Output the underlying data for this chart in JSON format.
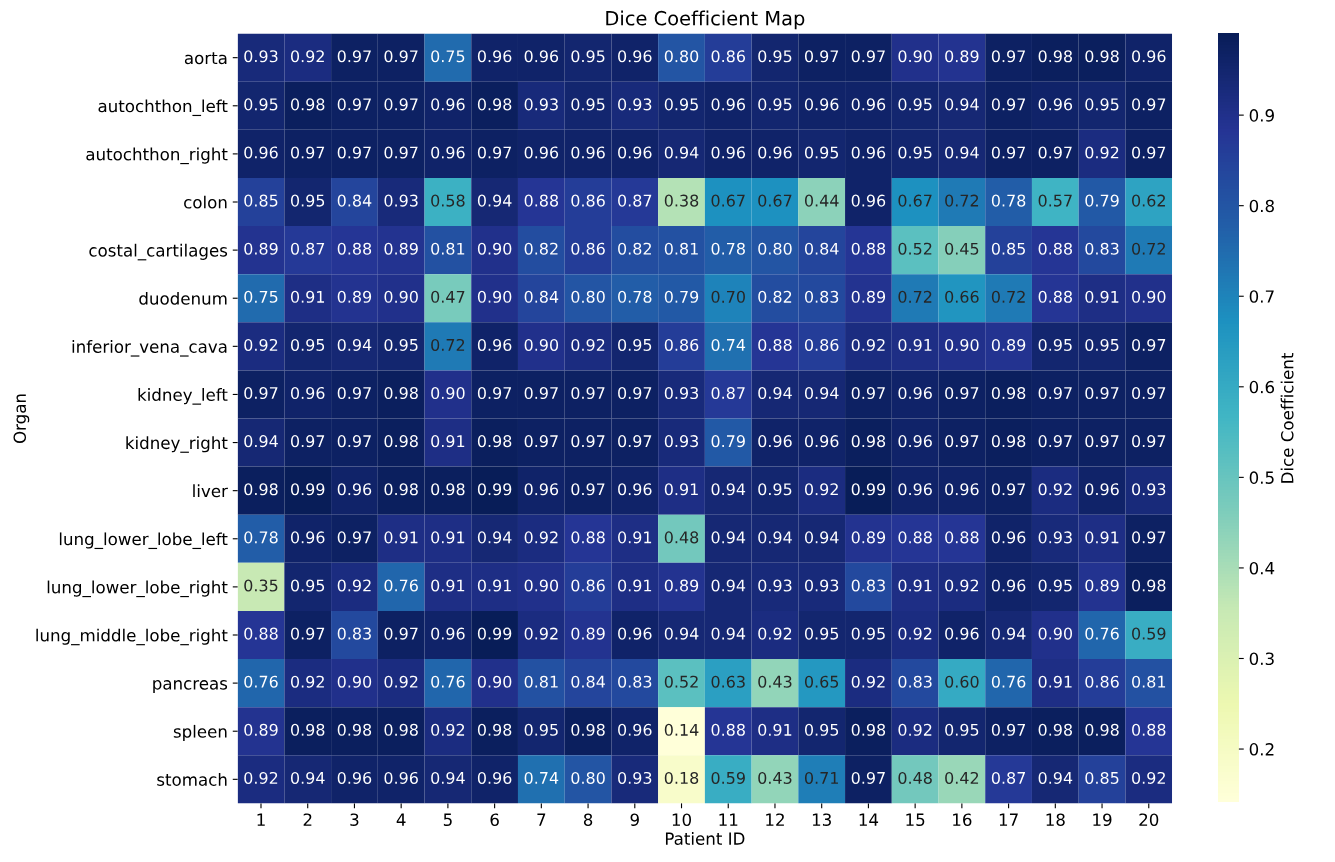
{
  "chart_data": {
    "type": "heatmap",
    "title": "Dice Coefficient Map",
    "xlabel": "Patient ID",
    "ylabel": "Organ",
    "clabel": "Dice Coefficient",
    "categories": [
      "1",
      "2",
      "3",
      "4",
      "5",
      "6",
      "7",
      "8",
      "9",
      "10",
      "11",
      "12",
      "13",
      "14",
      "15",
      "16",
      "17",
      "18",
      "19",
      "20"
    ],
    "y_categories": [
      "aorta",
      "autochthon_left",
      "autochthon_right",
      "colon",
      "costal_cartilages",
      "duodenum",
      "inferior_vena_cava",
      "kidney_left",
      "kidney_right",
      "liver",
      "lung_lower_lobe_left",
      "lung_lower_lobe_right",
      "lung_middle_lobe_right",
      "pancreas",
      "spleen",
      "stomach"
    ],
    "cells": [
      [
        0.93,
        0.92,
        0.97,
        0.97,
        0.75,
        0.96,
        0.96,
        0.95,
        0.96,
        0.8,
        0.86,
        0.95,
        0.97,
        0.97,
        0.9,
        0.89,
        0.97,
        0.98,
        0.98,
        0.96
      ],
      [
        0.95,
        0.98,
        0.97,
        0.97,
        0.96,
        0.98,
        0.93,
        0.95,
        0.93,
        0.95,
        0.96,
        0.95,
        0.96,
        0.96,
        0.95,
        0.94,
        0.97,
        0.96,
        0.95,
        0.97
      ],
      [
        0.96,
        0.97,
        0.97,
        0.97,
        0.96,
        0.97,
        0.96,
        0.96,
        0.96,
        0.94,
        0.96,
        0.96,
        0.95,
        0.96,
        0.95,
        0.94,
        0.97,
        0.97,
        0.92,
        0.97
      ],
      [
        0.85,
        0.95,
        0.84,
        0.93,
        0.58,
        0.94,
        0.88,
        0.86,
        0.87,
        0.38,
        0.67,
        0.67,
        0.44,
        0.96,
        0.67,
        0.72,
        0.78,
        0.57,
        0.79,
        0.62
      ],
      [
        0.89,
        0.87,
        0.88,
        0.89,
        0.81,
        0.9,
        0.82,
        0.86,
        0.82,
        0.81,
        0.78,
        0.8,
        0.84,
        0.88,
        0.52,
        0.45,
        0.85,
        0.88,
        0.83,
        0.72
      ],
      [
        0.75,
        0.91,
        0.89,
        0.9,
        0.47,
        0.9,
        0.84,
        0.8,
        0.78,
        0.79,
        0.7,
        0.82,
        0.83,
        0.89,
        0.72,
        0.66,
        0.72,
        0.88,
        0.91,
        0.9
      ],
      [
        0.92,
        0.95,
        0.94,
        0.95,
        0.72,
        0.96,
        0.9,
        0.92,
        0.95,
        0.86,
        0.74,
        0.88,
        0.86,
        0.92,
        0.91,
        0.9,
        0.89,
        0.95,
        0.95,
        0.97
      ],
      [
        0.97,
        0.96,
        0.97,
        0.98,
        0.9,
        0.97,
        0.97,
        0.97,
        0.97,
        0.93,
        0.87,
        0.94,
        0.94,
        0.97,
        0.96,
        0.97,
        0.98,
        0.97,
        0.97,
        0.97
      ],
      [
        0.94,
        0.97,
        0.97,
        0.98,
        0.91,
        0.98,
        0.97,
        0.97,
        0.97,
        0.93,
        0.79,
        0.96,
        0.96,
        0.98,
        0.96,
        0.97,
        0.98,
        0.97,
        0.97,
        0.97
      ],
      [
        0.98,
        0.99,
        0.96,
        0.98,
        0.98,
        0.99,
        0.96,
        0.97,
        0.96,
        0.91,
        0.94,
        0.95,
        0.92,
        0.99,
        0.96,
        0.96,
        0.97,
        0.92,
        0.96,
        0.93
      ],
      [
        0.78,
        0.96,
        0.97,
        0.91,
        0.91,
        0.94,
        0.92,
        0.88,
        0.91,
        0.48,
        0.94,
        0.94,
        0.94,
        0.89,
        0.88,
        0.88,
        0.96,
        0.93,
        0.91,
        0.97
      ],
      [
        0.35,
        0.95,
        0.92,
        0.76,
        0.91,
        0.91,
        0.9,
        0.86,
        0.91,
        0.89,
        0.94,
        0.93,
        0.93,
        0.83,
        0.91,
        0.92,
        0.96,
        0.95,
        0.89,
        0.98
      ],
      [
        0.88,
        0.97,
        0.83,
        0.97,
        0.96,
        0.99,
        0.92,
        0.89,
        0.96,
        0.94,
        0.94,
        0.92,
        0.95,
        0.95,
        0.92,
        0.96,
        0.94,
        0.9,
        0.76,
        0.59
      ],
      [
        0.76,
        0.92,
        0.9,
        0.92,
        0.76,
        0.9,
        0.81,
        0.84,
        0.83,
        0.52,
        0.63,
        0.43,
        0.65,
        0.92,
        0.83,
        0.6,
        0.76,
        0.91,
        0.86,
        0.81
      ],
      [
        0.89,
        0.98,
        0.98,
        0.98,
        0.92,
        0.98,
        0.95,
        0.98,
        0.96,
        0.14,
        0.88,
        0.91,
        0.95,
        0.98,
        0.92,
        0.95,
        0.97,
        0.98,
        0.98,
        0.88
      ],
      [
        0.92,
        0.94,
        0.96,
        0.96,
        0.94,
        0.96,
        0.74,
        0.8,
        0.93,
        0.18,
        0.59,
        0.43,
        0.71,
        0.97,
        0.48,
        0.42,
        0.87,
        0.94,
        0.85,
        0.92
      ]
    ],
    "cell_labels": [
      [
        "0.93",
        "0.92",
        "0.97",
        "0.97",
        "0.75",
        "0.96",
        "0.96",
        "0.95",
        "0.96",
        "0.80",
        "0.86",
        "0.95",
        "0.97",
        "0.97",
        "0.90",
        "0.89",
        "0.97",
        "0.98",
        "0.98",
        "0.96"
      ],
      [
        "0.95",
        "0.98",
        "0.97",
        "0.97",
        "0.96",
        "0.98",
        "0.93",
        "0.95",
        "0.93",
        "0.95",
        "0.96",
        "0.95",
        "0.96",
        "0.96",
        "0.95",
        "0.94",
        "0.97",
        "0.96",
        "0.95",
        "0.97"
      ],
      [
        "0.96",
        "0.97",
        "0.97",
        "0.97",
        "0.96",
        "0.97",
        "0.96",
        "0.96",
        "0.96",
        "0.94",
        "0.96",
        "0.96",
        "0.95",
        "0.96",
        "0.95",
        "0.94",
        "0.97",
        "0.97",
        "0.92",
        "0.97"
      ],
      [
        "0.85",
        "0.95",
        "0.84",
        "0.93",
        "0.58",
        "0.94",
        "0.88",
        "0.86",
        "0.87",
        "0.38",
        "0.67",
        "0.67",
        "0.44",
        "0.96",
        "0.67",
        "0.72",
        "0.78",
        "0.57",
        "0.79",
        "0.62"
      ],
      [
        "0.89",
        "0.87",
        "0.88",
        "0.89",
        "0.81",
        "0.90",
        "0.82",
        "0.86",
        "0.82",
        "0.81",
        "0.78",
        "0.80",
        "0.84",
        "0.88",
        "0.52",
        "0.45",
        "0.85",
        "0.88",
        "0.83",
        "0.72"
      ],
      [
        "0.75",
        "0.91",
        "0.89",
        "0.90",
        "0.47",
        "0.90",
        "0.84",
        "0.80",
        "0.78",
        "0.79",
        "0.70",
        "0.82",
        "0.83",
        "0.89",
        "0.72",
        "0.66",
        "0.72",
        "0.88",
        "0.91",
        "0.90"
      ],
      [
        "0.92",
        "0.95",
        "0.94",
        "0.95",
        "0.72",
        "0.96",
        "0.90",
        "0.92",
        "0.95",
        "0.86",
        "0.74",
        "0.88",
        "0.86",
        "0.92",
        "0.91",
        "0.90",
        "0.89",
        "0.95",
        "0.95",
        "0.97"
      ],
      [
        "0.97",
        "0.96",
        "0.97",
        "0.98",
        "0.90",
        "0.97",
        "0.97",
        "0.97",
        "0.97",
        "0.93",
        "0.87",
        "0.94",
        "0.94",
        "0.97",
        "0.96",
        "0.97",
        "0.98",
        "0.97",
        "0.97",
        "0.97"
      ],
      [
        "0.94",
        "0.97",
        "0.97",
        "0.98",
        "0.91",
        "0.98",
        "0.97",
        "0.97",
        "0.97",
        "0.93",
        "0.79",
        "0.96",
        "0.96",
        "0.98",
        "0.96",
        "0.97",
        "0.98",
        "0.97",
        "0.97",
        "0.97"
      ],
      [
        "0.98",
        "0.99",
        "0.96",
        "0.98",
        "0.98",
        "0.99",
        "0.96",
        "0.97",
        "0.96",
        "0.91",
        "0.94",
        "0.95",
        "0.92",
        "0.99",
        "0.96",
        "0.96",
        "0.97",
        "0.92",
        "0.96",
        "0.93"
      ],
      [
        "0.78",
        "0.96",
        "0.97",
        "0.91",
        "0.91",
        "0.94",
        "0.92",
        "0.88",
        "0.91",
        "0.48",
        "0.94",
        "0.94",
        "0.94",
        "0.89",
        "0.88",
        "0.88",
        "0.96",
        "0.93",
        "0.91",
        "0.97"
      ],
      [
        "0.35",
        "0.95",
        "0.92",
        "0.76",
        "0.91",
        "0.91",
        "0.90",
        "0.86",
        "0.91",
        "0.89",
        "0.94",
        "0.93",
        "0.93",
        "0.83",
        "0.91",
        "0.92",
        "0.96",
        "0.95",
        "0.89",
        "0.98"
      ],
      [
        "0.88",
        "0.97",
        "0.83",
        "0.97",
        "0.96",
        "0.99",
        "0.92",
        "0.89",
        "0.96",
        "0.94",
        "0.94",
        "0.92",
        "0.95",
        "0.95",
        "0.92",
        "0.96",
        "0.94",
        "0.90",
        "0.76",
        "0.59"
      ],
      [
        "0.76",
        "0.92",
        "0.90",
        "0.92",
        "0.76",
        "0.90",
        "0.81",
        "0.84",
        "0.83",
        "0.52",
        "0.63",
        "0.43",
        "0.65",
        "0.92",
        "0.83",
        "0.60",
        "0.76",
        "0.91",
        "0.86",
        "0.81"
      ],
      [
        "0.89",
        "0.98",
        "0.98",
        "0.98",
        "0.92",
        "0.98",
        "0.95",
        "0.98",
        "0.96",
        "0.14",
        "0.88",
        "0.91",
        "0.95",
        "0.98",
        "0.92",
        "0.95",
        "0.97",
        "0.98",
        "0.98",
        "0.88"
      ],
      [
        "0.92",
        "0.94",
        "0.96",
        "0.96",
        "0.94",
        "0.96",
        "0.74",
        "0.80",
        "0.93",
        "0.18",
        "0.59",
        "0.43",
        "0.71",
        "0.97",
        "0.48",
        "0.42",
        "0.87",
        "0.94",
        "0.85",
        "0.92"
      ]
    ],
    "clim": [
      0.14,
      0.99
    ],
    "cticks": [
      0.2,
      0.3,
      0.4,
      0.5,
      0.6,
      0.7,
      0.8,
      0.9
    ],
    "data_labels": true
  }
}
